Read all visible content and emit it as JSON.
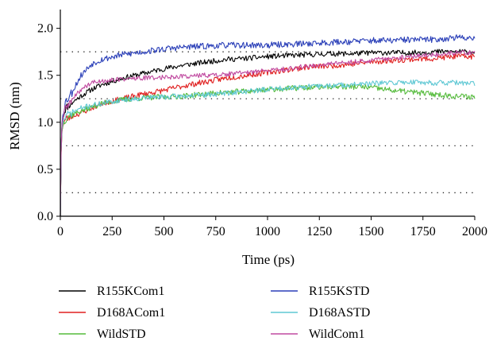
{
  "chart_data": {
    "type": "line",
    "xlabel": "Time (ps)",
    "ylabel": "RMSD (nm)",
    "xlim": [
      0,
      2000
    ],
    "ylim": [
      0,
      2.2
    ],
    "xticks": [
      0,
      250,
      500,
      750,
      1000,
      1250,
      1500,
      1750,
      2000
    ],
    "yticks": [
      "0.0",
      "0.5",
      "1.0",
      "1.5",
      "2.0"
    ],
    "reference_lines_y": [
      0.25,
      0.75,
      1.25,
      1.75
    ],
    "legend_position": "bottom",
    "series": [
      {
        "name": "R155KCom1",
        "color": "#000000",
        "noise": 0.028,
        "seed": 11,
        "x": [
          0,
          5,
          12,
          25,
          50,
          100,
          150,
          200,
          300,
          400,
          500,
          600,
          700,
          800,
          900,
          1000,
          1100,
          1200,
          1300,
          1400,
          1500,
          1600,
          1700,
          1800,
          1900,
          2000
        ],
        "y": [
          0.0,
          0.9,
          1.05,
          1.15,
          1.2,
          1.28,
          1.35,
          1.4,
          1.47,
          1.52,
          1.57,
          1.61,
          1.64,
          1.67,
          1.68,
          1.7,
          1.71,
          1.72,
          1.73,
          1.73,
          1.74,
          1.74,
          1.74,
          1.75,
          1.75,
          1.75
        ]
      },
      {
        "name": "D168ACom1",
        "color": "#e02020",
        "noise": 0.03,
        "seed": 23,
        "x": [
          0,
          5,
          12,
          25,
          50,
          100,
          150,
          200,
          300,
          400,
          500,
          600,
          700,
          800,
          900,
          1000,
          1100,
          1200,
          1300,
          1400,
          1500,
          1600,
          1700,
          1800,
          1900,
          2000
        ],
        "y": [
          0.0,
          0.85,
          0.98,
          1.03,
          1.06,
          1.1,
          1.15,
          1.2,
          1.25,
          1.3,
          1.34,
          1.39,
          1.43,
          1.47,
          1.5,
          1.53,
          1.56,
          1.59,
          1.6,
          1.62,
          1.64,
          1.66,
          1.67,
          1.68,
          1.7,
          1.7
        ]
      },
      {
        "name": "WildSTD",
        "color": "#55bb3c",
        "noise": 0.03,
        "seed": 37,
        "x": [
          0,
          5,
          12,
          25,
          50,
          100,
          150,
          200,
          300,
          400,
          500,
          600,
          700,
          800,
          900,
          1000,
          1100,
          1200,
          1300,
          1400,
          1500,
          1600,
          1700,
          1800,
          1900,
          2000
        ],
        "y": [
          0.0,
          0.85,
          0.98,
          1.04,
          1.08,
          1.12,
          1.16,
          1.2,
          1.24,
          1.26,
          1.27,
          1.28,
          1.3,
          1.32,
          1.33,
          1.35,
          1.36,
          1.37,
          1.38,
          1.38,
          1.37,
          1.34,
          1.32,
          1.3,
          1.28,
          1.27
        ]
      },
      {
        "name": "R155KSTD",
        "color": "#2a3fb8",
        "noise": 0.033,
        "seed": 53,
        "x": [
          0,
          5,
          12,
          25,
          50,
          100,
          150,
          200,
          300,
          400,
          500,
          600,
          700,
          800,
          900,
          1000,
          1100,
          1200,
          1300,
          1400,
          1500,
          1600,
          1700,
          1800,
          1900,
          2000
        ],
        "y": [
          0.0,
          0.9,
          1.1,
          1.22,
          1.3,
          1.5,
          1.62,
          1.67,
          1.72,
          1.75,
          1.78,
          1.8,
          1.81,
          1.82,
          1.82,
          1.82,
          1.83,
          1.84,
          1.85,
          1.86,
          1.87,
          1.87,
          1.88,
          1.88,
          1.9,
          1.9
        ]
      },
      {
        "name": "D168ASTD",
        "color": "#5fc8d4",
        "noise": 0.028,
        "seed": 71,
        "x": [
          0,
          5,
          12,
          25,
          50,
          100,
          150,
          200,
          300,
          400,
          500,
          600,
          700,
          800,
          900,
          1000,
          1100,
          1200,
          1300,
          1400,
          1500,
          1600,
          1700,
          1800,
          1900,
          2000
        ],
        "y": [
          0.0,
          0.88,
          1.0,
          1.06,
          1.1,
          1.15,
          1.18,
          1.2,
          1.24,
          1.26,
          1.27,
          1.28,
          1.29,
          1.31,
          1.33,
          1.35,
          1.37,
          1.38,
          1.39,
          1.4,
          1.41,
          1.42,
          1.43,
          1.42,
          1.42,
          1.41
        ]
      },
      {
        "name": "WildCom1",
        "color": "#c04aa0",
        "noise": 0.026,
        "seed": 89,
        "x": [
          0,
          5,
          12,
          25,
          50,
          100,
          150,
          200,
          300,
          400,
          500,
          600,
          700,
          800,
          900,
          1000,
          1100,
          1200,
          1300,
          1400,
          1500,
          1600,
          1700,
          1800,
          1900,
          2000
        ],
        "y": [
          0.0,
          0.9,
          1.05,
          1.15,
          1.22,
          1.35,
          1.42,
          1.44,
          1.46,
          1.47,
          1.48,
          1.49,
          1.5,
          1.51,
          1.53,
          1.55,
          1.57,
          1.6,
          1.62,
          1.64,
          1.66,
          1.68,
          1.7,
          1.72,
          1.74,
          1.74
        ]
      }
    ]
  }
}
